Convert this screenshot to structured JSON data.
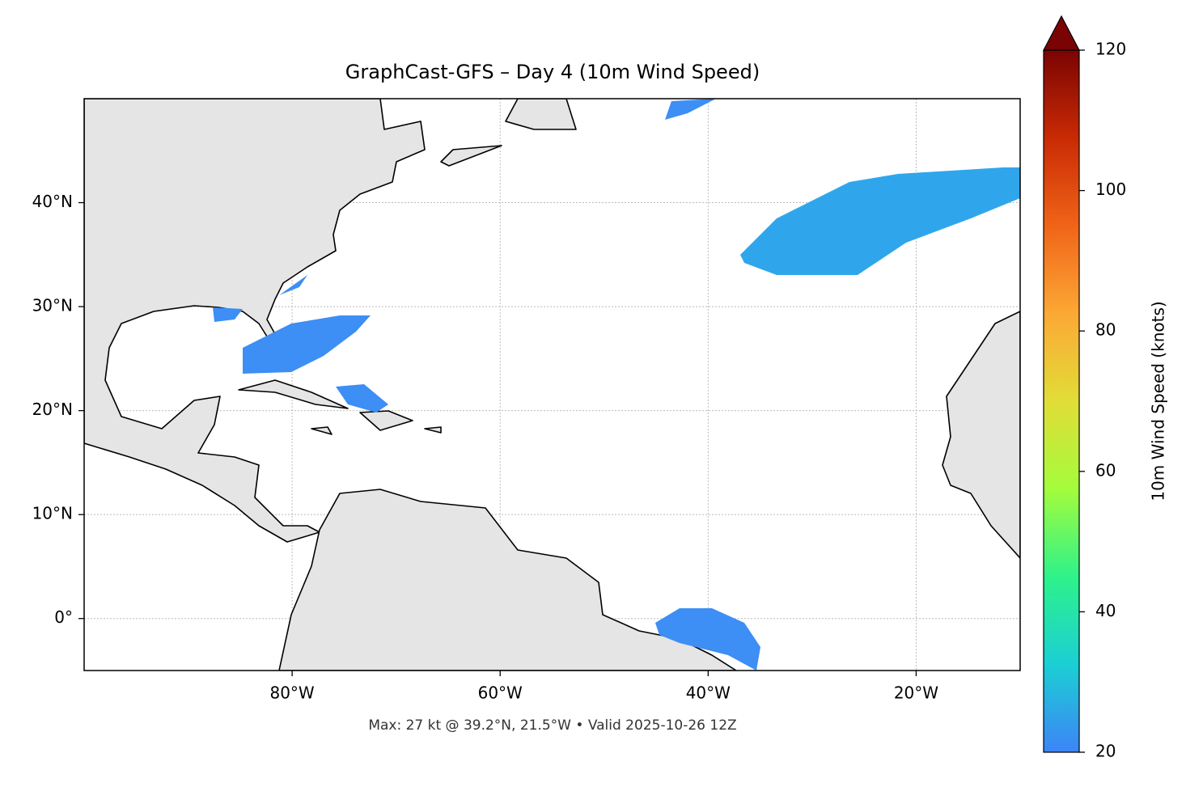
{
  "chart_data": {
    "type": "map",
    "title": "GraphCast-GFS – Day 4 (10m Wind Speed)",
    "footnote": "Max: 27 kt @ 39.2°N, 21.5°W • Valid 2025-10-26 12Z",
    "xlim": [
      -100,
      -10
    ],
    "ylim": [
      -5,
      50
    ],
    "xticks": [
      {
        "value": -80,
        "label": "80°W"
      },
      {
        "value": -60,
        "label": "60°W"
      },
      {
        "value": -40,
        "label": "40°W"
      },
      {
        "value": -20,
        "label": "20°W"
      }
    ],
    "yticks": [
      {
        "value": 0,
        "label": "0°"
      },
      {
        "value": 10,
        "label": "10°N"
      },
      {
        "value": 20,
        "label": "20°N"
      },
      {
        "value": 30,
        "label": "30°N"
      },
      {
        "value": 40,
        "label": "40°N"
      }
    ],
    "grid": true,
    "colorbar_label": "10m Wind Speed (knots)",
    "colorbar_lim": [
      20,
      120
    ],
    "colorbar_ticks": [
      20,
      40,
      60,
      80,
      100,
      120
    ],
    "colormap": [
      "#3d84f7",
      "#1bcfd4",
      "#2ef28a",
      "#a4fc3c",
      "#e1dd37",
      "#fca835",
      "#f06418",
      "#c92a04",
      "#7a0403"
    ]
  }
}
